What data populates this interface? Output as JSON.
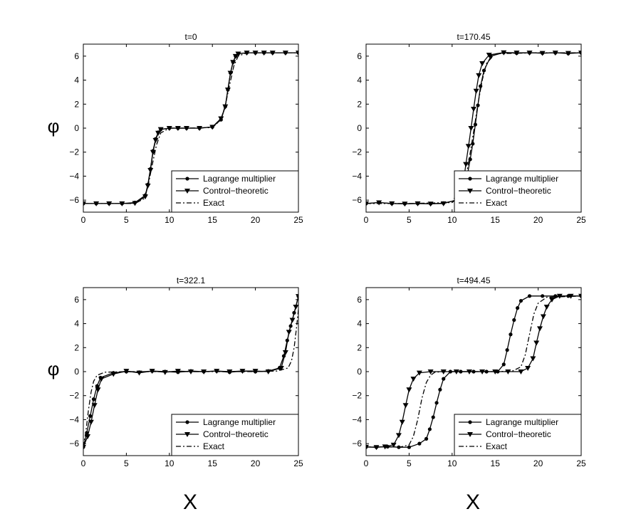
{
  "figure": {
    "x_axis_label": "X",
    "y_axis_label": "φ",
    "legend": [
      "Lagrange multiplier",
      "Control−theoretic",
      "Exact"
    ]
  },
  "chart_data": [
    {
      "type": "line",
      "title": "t=0",
      "xlabel": "",
      "ylabel": "φ",
      "xlim": [
        0,
        25
      ],
      "ylim": [
        -7,
        7
      ],
      "xticks": [
        0,
        5,
        10,
        15,
        20,
        25
      ],
      "yticks": [
        -6,
        -4,
        -2,
        0,
        2,
        4,
        6
      ],
      "legend_position": "bottom-right",
      "series": [
        {
          "name": "Lagrange multiplier",
          "marker": "circle",
          "line": "solid",
          "x": [
            0,
            1.5,
            3,
            4.5,
            6,
            7.2,
            7.5,
            7.8,
            8.1,
            8.4,
            8.7,
            9,
            10,
            11,
            12,
            13.5,
            15,
            16,
            16.5,
            16.8,
            17.1,
            17.4,
            17.7,
            18,
            19,
            20,
            21,
            22,
            23.5,
            25
          ],
          "y": [
            -6.28,
            -6.28,
            -6.28,
            -6.28,
            -6.2,
            -5.6,
            -4.7,
            -3.4,
            -1.9,
            -0.9,
            -0.35,
            -0.1,
            0,
            0,
            0,
            0,
            0.1,
            0.7,
            1.8,
            3.2,
            4.6,
            5.5,
            6.0,
            6.2,
            6.28,
            6.28,
            6.28,
            6.28,
            6.28,
            6.28
          ]
        },
        {
          "name": "Control−theoretic",
          "marker": "triangle",
          "line": "solid",
          "x": [
            0,
            1.5,
            3,
            4.5,
            6,
            7.2,
            7.5,
            7.8,
            8.1,
            8.4,
            8.7,
            9,
            10,
            11,
            12,
            13.5,
            15,
            16,
            16.5,
            16.8,
            17.1,
            17.4,
            17.7,
            18,
            19,
            20,
            21,
            22,
            23.5,
            25
          ],
          "y": [
            -6.28,
            -6.28,
            -6.28,
            -6.28,
            -6.25,
            -5.7,
            -4.8,
            -3.5,
            -2.0,
            -1.0,
            -0.4,
            -0.1,
            0,
            0,
            0,
            0,
            0.1,
            0.8,
            1.8,
            3.2,
            4.6,
            5.5,
            6.0,
            6.2,
            6.28,
            6.28,
            6.28,
            6.28,
            6.28,
            6.28
          ]
        },
        {
          "name": "Exact",
          "marker": "none",
          "line": "dashdot",
          "x": [
            0,
            3,
            6,
            7,
            7.5,
            8,
            8.5,
            9,
            10,
            12,
            15,
            16,
            16.5,
            17,
            17.5,
            18,
            19,
            22,
            25
          ],
          "y": [
            -6.28,
            -6.28,
            -6.28,
            -5.9,
            -4.9,
            -3.1,
            -1.4,
            -0.4,
            0,
            0,
            0.05,
            0.7,
            1.9,
            3.6,
            5.2,
            6.0,
            6.28,
            6.28,
            6.28
          ]
        }
      ]
    },
    {
      "type": "line",
      "title": "t=170.45",
      "xlabel": "",
      "ylabel": "",
      "xlim": [
        0,
        25
      ],
      "ylim": [
        -7,
        7
      ],
      "xticks": [
        0,
        5,
        10,
        15,
        20,
        25
      ],
      "yticks": [
        -6,
        -4,
        -2,
        0,
        2,
        4,
        6
      ],
      "legend_position": "bottom-right",
      "series": [
        {
          "name": "Lagrange multiplier",
          "marker": "circle",
          "line": "solid",
          "x": [
            0,
            1.5,
            3,
            4.5,
            6,
            7.5,
            9,
            10.5,
            11,
            11.5,
            11.8,
            12.1,
            12.4,
            12.7,
            13,
            13.3,
            13.7,
            14.5,
            16,
            17.5,
            19,
            20.5,
            22,
            23.5,
            25
          ],
          "y": [
            -6.28,
            -6.2,
            -6.28,
            -6.3,
            -6.28,
            -6.3,
            -6.25,
            -6.0,
            -5.5,
            -4.8,
            -3.8,
            -2.6,
            -1.3,
            0.3,
            1.9,
            3.5,
            4.8,
            6.0,
            6.3,
            6.25,
            6.28,
            6.25,
            6.28,
            6.22,
            6.28
          ]
        },
        {
          "name": "Control−theoretic",
          "marker": "triangle",
          "line": "solid",
          "x": [
            0,
            1.5,
            3,
            4.5,
            6,
            7.5,
            9,
            10.5,
            11,
            11.3,
            11.6,
            11.9,
            12.2,
            12.5,
            12.8,
            13.1,
            13.5,
            14.3,
            16,
            17.5,
            19,
            20.5,
            22,
            23.5,
            25
          ],
          "y": [
            -6.28,
            -6.2,
            -6.28,
            -6.3,
            -6.28,
            -6.3,
            -6.28,
            -6.0,
            -5.4,
            -4.6,
            -3.0,
            -1.5,
            0,
            1.6,
            3.1,
            4.4,
            5.4,
            6.1,
            6.3,
            6.28,
            6.28,
            6.25,
            6.28,
            6.25,
            6.28
          ]
        },
        {
          "name": "Exact",
          "marker": "none",
          "line": "dashdot",
          "x": [
            0,
            5,
            10,
            11,
            11.5,
            12,
            12.5,
            13,
            13.5,
            14,
            15,
            20,
            25
          ],
          "y": [
            -6.28,
            -6.28,
            -6.2,
            -5.6,
            -4.5,
            -2.5,
            -0.3,
            2.0,
            4.0,
            5.4,
            6.2,
            6.28,
            6.28
          ]
        }
      ]
    },
    {
      "type": "line",
      "title": "t=322.1",
      "xlabel": "X",
      "ylabel": "φ",
      "xlim": [
        0,
        25
      ],
      "ylim": [
        -7,
        7
      ],
      "xticks": [
        0,
        5,
        10,
        15,
        20,
        25
      ],
      "yticks": [
        -6,
        -4,
        -2,
        0,
        2,
        4,
        6
      ],
      "legend_position": "bottom-right",
      "series": [
        {
          "name": "Lagrange multiplier",
          "marker": "circle",
          "line": "solid",
          "x": [
            0,
            0.4,
            0.8,
            1.2,
            1.6,
            2,
            3.5,
            5,
            6.5,
            8,
            9.5,
            11,
            12.5,
            14,
            15.5,
            17,
            18.5,
            20,
            21.5,
            22.8,
            23.3,
            23.7,
            24.1,
            24.5,
            25
          ],
          "y": [
            -6.28,
            -5.1,
            -3.7,
            -2.3,
            -1.2,
            -0.5,
            -0.1,
            0,
            -0.05,
            0.05,
            0,
            -0.05,
            0.05,
            0,
            0.05,
            -0.05,
            0.05,
            0,
            0.05,
            0.3,
            1.3,
            2.6,
            3.8,
            4.9,
            6.28
          ]
        },
        {
          "name": "Control−theoretic",
          "marker": "triangle",
          "line": "solid",
          "x": [
            0,
            0.5,
            0.9,
            1.3,
            1.7,
            2.1,
            3.5,
            5,
            6.5,
            8,
            9.5,
            11,
            12.5,
            14,
            15.5,
            17,
            18.5,
            20,
            21.5,
            23,
            23.5,
            23.9,
            24.3,
            24.7,
            25
          ],
          "y": [
            -6.28,
            -5.4,
            -4.2,
            -2.8,
            -1.5,
            -0.6,
            -0.2,
            0.05,
            -0.1,
            0.05,
            -0.05,
            0.05,
            0,
            0,
            0.05,
            0,
            0.05,
            0.05,
            0,
            0.3,
            1.6,
            3.3,
            4.3,
            5.4,
            6.28
          ]
        },
        {
          "name": "Exact",
          "marker": "none",
          "line": "dashdot",
          "x": [
            0,
            0.3,
            0.6,
            0.9,
            1.2,
            1.6,
            2.5,
            5,
            10,
            15,
            20,
            22.5,
            23.8,
            24.2,
            24.5,
            24.8,
            25
          ],
          "y": [
            -6.28,
            -5.0,
            -3.2,
            -1.7,
            -0.8,
            -0.3,
            -0.05,
            0,
            0,
            0,
            0,
            0.05,
            0.3,
            0.9,
            2.0,
            3.8,
            5.2
          ]
        }
      ]
    },
    {
      "type": "line",
      "title": "t=494.45",
      "xlabel": "X",
      "ylabel": "",
      "xlim": [
        0,
        25
      ],
      "ylim": [
        -7,
        7
      ],
      "xticks": [
        0,
        5,
        10,
        15,
        20,
        25
      ],
      "yticks": [
        -6,
        -4,
        -2,
        0,
        2,
        4,
        6
      ],
      "legend_position": "bottom-right",
      "series": [
        {
          "name": "Lagrange multiplier",
          "marker": "circle",
          "line": "solid",
          "x": [
            0,
            1.2,
            2.5,
            3.8,
            5,
            6.2,
            7,
            7.4,
            7.8,
            8.2,
            8.6,
            9,
            9.8,
            11,
            12.5,
            14,
            15.3,
            16,
            16.4,
            16.8,
            17.2,
            17.6,
            18,
            19,
            20.5,
            22,
            23.5,
            25
          ],
          "y": [
            -6.28,
            -6.3,
            -6.25,
            -6.3,
            -6.3,
            -6.0,
            -5.6,
            -4.8,
            -3.8,
            -2.6,
            -1.5,
            -0.6,
            0,
            0,
            0,
            0,
            0,
            0.6,
            1.8,
            3.1,
            4.3,
            5.3,
            5.9,
            6.3,
            6.3,
            6.3,
            6.3,
            6.3
          ]
        },
        {
          "name": "Control−theoretic",
          "marker": "triangle",
          "line": "solid",
          "x": [
            0,
            1.2,
            2.2,
            3.2,
            3.8,
            4.2,
            4.6,
            5,
            5.5,
            6.2,
            7.5,
            9,
            10.5,
            12,
            13.5,
            15,
            16.5,
            18,
            18.8,
            19.4,
            19.8,
            20.2,
            20.6,
            21,
            21.6,
            22.5,
            23.8,
            25
          ],
          "y": [
            -6.28,
            -6.3,
            -6.25,
            -6.1,
            -5.3,
            -4.2,
            -2.8,
            -1.5,
            -0.6,
            -0.1,
            0,
            0,
            0,
            0,
            0,
            0,
            0,
            0,
            0.3,
            1.1,
            2.4,
            3.6,
            4.6,
            5.4,
            6.0,
            6.3,
            6.3,
            6.3
          ]
        },
        {
          "name": "Exact",
          "marker": "none",
          "line": "dashdot",
          "x": [
            0,
            4,
            5,
            5.5,
            6,
            6.5,
            7,
            7.5,
            8,
            9,
            12,
            15,
            17,
            18,
            18.5,
            19,
            19.5,
            20,
            21,
            25
          ],
          "y": [
            -6.28,
            -6.28,
            -6.1,
            -5.4,
            -4.0,
            -2.2,
            -0.9,
            -0.3,
            -0.05,
            0,
            0,
            0,
            0.05,
            0.4,
            1.4,
            3.1,
            4.8,
            5.7,
            6.2,
            6.3
          ]
        }
      ]
    }
  ]
}
